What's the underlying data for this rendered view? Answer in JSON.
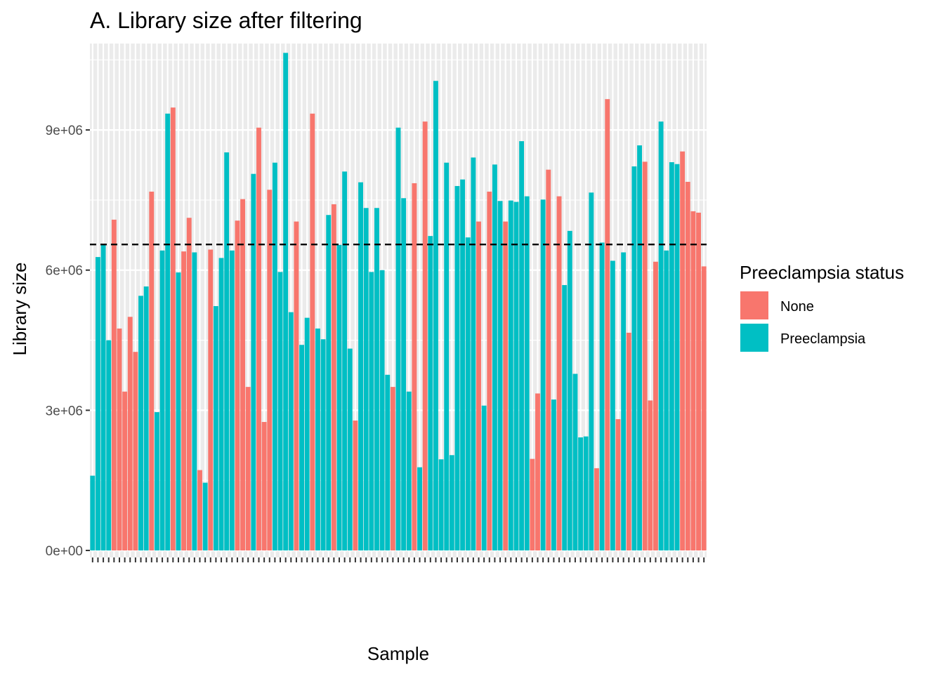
{
  "chart_data": {
    "type": "bar",
    "title": "A. Library size after filtering",
    "xlabel": "Sample",
    "ylabel": "Library size",
    "ylim": [
      -150000,
      10850000
    ],
    "yticks": [
      {
        "value": 0,
        "label": "0e+00"
      },
      {
        "value": 3000000,
        "label": "3e+06"
      },
      {
        "value": 6000000,
        "label": "6e+06"
      },
      {
        "value": 9000000,
        "label": "9e+06"
      }
    ],
    "reference_line": {
      "value": 6550000,
      "style": "dashed",
      "color": "#000000"
    },
    "grid": true,
    "panel_background": "#ebebeb",
    "legend": {
      "title": "Preeclampsia status",
      "position": "right",
      "entries": [
        {
          "label": "None",
          "color": "#F8766D"
        },
        {
          "label": "Preeclampsia",
          "color": "#00BFC4"
        }
      ]
    },
    "x_tick_labels_legible": false,
    "values": [
      1600000,
      6280000,
      6550000,
      4500000,
      7080000,
      4750000,
      3400000,
      5000000,
      4250000,
      5450000,
      5650000,
      7680000,
      2960000,
      6420000,
      9350000,
      9480000,
      5950000,
      6400000,
      7120000,
      6380000,
      1720000,
      1450000,
      6440000,
      5230000,
      6260000,
      8520000,
      6420000,
      7060000,
      7520000,
      3500000,
      8060000,
      9050000,
      2750000,
      7720000,
      8300000,
      5960000,
      10650000,
      5100000,
      7040000,
      4400000,
      4980000,
      9350000,
      4750000,
      4520000,
      7180000,
      7410000,
      6540000,
      8110000,
      4320000,
      2780000,
      7880000,
      7330000,
      5960000,
      7330000,
      6000000,
      3760000,
      3500000,
      9050000,
      7540000,
      3400000,
      7860000,
      1780000,
      9180000,
      6730000,
      10050000,
      1950000,
      8300000,
      2040000,
      7800000,
      7940000,
      6700000,
      8410000,
      7040000,
      3100000,
      7680000,
      8260000,
      7480000,
      7040000,
      7490000,
      7460000,
      8760000,
      7580000,
      1960000,
      3360000,
      7510000,
      8150000,
      3230000,
      7580000,
      5680000,
      6840000,
      3780000,
      2420000,
      2440000,
      7660000,
      1760000,
      6590000,
      9660000,
      6200000,
      2810000,
      6380000,
      4660000,
      8220000,
      8670000,
      8320000,
      3210000,
      6180000,
      9180000,
      6420000,
      8310000,
      8270000,
      8540000,
      7890000,
      7260000,
      7230000,
      6080000
    ],
    "groups": [
      "Preeclampsia",
      "Preeclampsia",
      "Preeclampsia",
      "Preeclampsia",
      "None",
      "None",
      "None",
      "None",
      "None",
      "Preeclampsia",
      "Preeclampsia",
      "None",
      "Preeclampsia",
      "Preeclampsia",
      "Preeclampsia",
      "None",
      "Preeclampsia",
      "None",
      "None",
      "Preeclampsia",
      "None",
      "Preeclampsia",
      "None",
      "Preeclampsia",
      "Preeclampsia",
      "Preeclampsia",
      "Preeclampsia",
      "None",
      "None",
      "None",
      "Preeclampsia",
      "None",
      "None",
      "None",
      "Preeclampsia",
      "Preeclampsia",
      "Preeclampsia",
      "Preeclampsia",
      "None",
      "Preeclampsia",
      "Preeclampsia",
      "None",
      "Preeclampsia",
      "Preeclampsia",
      "Preeclampsia",
      "None",
      "Preeclampsia",
      "Preeclampsia",
      "Preeclampsia",
      "None",
      "Preeclampsia",
      "Preeclampsia",
      "Preeclampsia",
      "Preeclampsia",
      "Preeclampsia",
      "Preeclampsia",
      "None",
      "Preeclampsia",
      "Preeclampsia",
      "Preeclampsia",
      "None",
      "Preeclampsia",
      "None",
      "Preeclampsia",
      "Preeclampsia",
      "Preeclampsia",
      "Preeclampsia",
      "Preeclampsia",
      "Preeclampsia",
      "Preeclampsia",
      "Preeclampsia",
      "Preeclampsia",
      "None",
      "Preeclampsia",
      "None",
      "Preeclampsia",
      "Preeclampsia",
      "None",
      "Preeclampsia",
      "Preeclampsia",
      "Preeclampsia",
      "Preeclampsia",
      "None",
      "None",
      "Preeclampsia",
      "None",
      "Preeclampsia",
      "None",
      "Preeclampsia",
      "Preeclampsia",
      "Preeclampsia",
      "Preeclampsia",
      "Preeclampsia",
      "Preeclampsia",
      "None",
      "Preeclampsia",
      "None",
      "Preeclampsia",
      "None",
      "Preeclampsia",
      "None",
      "Preeclampsia",
      "Preeclampsia",
      "None",
      "None",
      "None",
      "Preeclampsia",
      "Preeclampsia",
      "Preeclampsia",
      "Preeclampsia",
      "None",
      "None",
      "None",
      "None",
      "None"
    ]
  }
}
